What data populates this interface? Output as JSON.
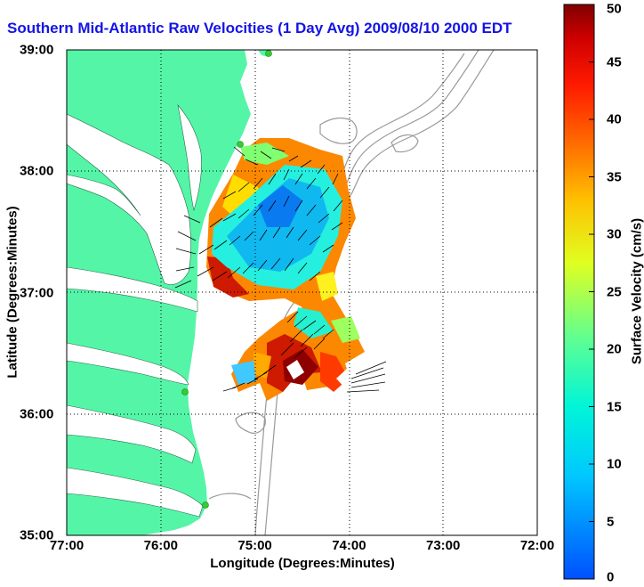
{
  "title": "Southern Mid-Atlantic Raw Velocities (1 Day Avg) 2009/08/10 2000 EDT",
  "map": {
    "xlabel": "Longitude (Degrees:Minutes)",
    "ylabel": "Latitude (Degrees:Minutes)",
    "xlim": [
      -77,
      -72
    ],
    "ylim": [
      35,
      39
    ],
    "x_ticks": [
      {
        "value": -77,
        "label": "77:00"
      },
      {
        "value": -76,
        "label": "76:00"
      },
      {
        "value": -75,
        "label": "75:00"
      },
      {
        "value": -74,
        "label": "74:00"
      },
      {
        "value": -73,
        "label": "73:00"
      },
      {
        "value": -72,
        "label": "72:00"
      }
    ],
    "y_ticks": [
      {
        "value": 39,
        "label": "39:00"
      },
      {
        "value": 38,
        "label": "38:00"
      },
      {
        "value": 37,
        "label": "37:00"
      },
      {
        "value": 36,
        "label": "36:00"
      },
      {
        "value": 35,
        "label": "35:00"
      }
    ],
    "grid": true,
    "land_color": "#55f5a8",
    "ocean_color": "#ffffff",
    "contour_color": "#999999",
    "station_color": "#33cc33"
  },
  "colorbar": {
    "label": "Surface Velocity (cm/s)",
    "min": 0,
    "max": 50,
    "ticks": [
      {
        "value": 50,
        "label": "50"
      },
      {
        "value": 45,
        "label": "45"
      },
      {
        "value": 40,
        "label": "40"
      },
      {
        "value": 35,
        "label": "35"
      },
      {
        "value": 30,
        "label": "30"
      },
      {
        "value": 25,
        "label": "25"
      },
      {
        "value": 20,
        "label": "20"
      },
      {
        "value": 15,
        "label": "15"
      },
      {
        "value": 10,
        "label": "10"
      },
      {
        "value": 5,
        "label": "5"
      },
      {
        "value": 0,
        "label": "0"
      }
    ]
  }
}
